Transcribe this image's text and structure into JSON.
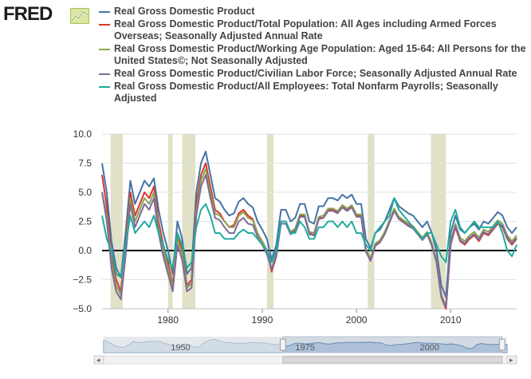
{
  "logo": {
    "text": "FRED"
  },
  "chart_data": {
    "type": "line",
    "xlim": [
      1973.0,
      2017.0
    ],
    "ylim": [
      -5.0,
      10.0
    ],
    "x_ticks": [
      1980,
      1990,
      2000,
      2010
    ],
    "y_ticks": [
      10.0,
      7.5,
      5.0,
      2.5,
      0.0,
      -2.5,
      -5.0
    ],
    "x_tick_labels": [
      "1980",
      "1990",
      "2000",
      "2010"
    ],
    "y_tick_labels": [
      "10.0",
      "7.5",
      "5.0",
      "2.5",
      "0.0",
      "−2.5",
      "−5.0"
    ],
    "legend_position": "top",
    "grid": {
      "horizontal": true,
      "vertical": false
    },
    "recessions": [
      [
        1973.9,
        1975.2
      ],
      [
        1980.0,
        1980.5
      ],
      [
        1981.5,
        1982.9
      ],
      [
        1990.5,
        1991.2
      ],
      [
        2001.2,
        2001.9
      ],
      [
        2007.9,
        2009.5
      ]
    ],
    "x": [
      1973.0,
      1973.5,
      1974.0,
      1974.5,
      1975.0,
      1975.5,
      1976.0,
      1976.5,
      1977.0,
      1977.5,
      1978.0,
      1978.5,
      1979.0,
      1979.5,
      1980.0,
      1980.5,
      1981.0,
      1981.5,
      1982.0,
      1982.5,
      1983.0,
      1983.5,
      1984.0,
      1984.5,
      1985.0,
      1985.5,
      1986.0,
      1986.5,
      1987.0,
      1987.5,
      1988.0,
      1988.5,
      1989.0,
      1989.5,
      1990.0,
      1990.5,
      1991.0,
      1991.5,
      1992.0,
      1992.5,
      1993.0,
      1993.5,
      1994.0,
      1994.5,
      1995.0,
      1995.5,
      1996.0,
      1996.5,
      1997.0,
      1997.5,
      1998.0,
      1998.5,
      1999.0,
      1999.5,
      2000.0,
      2000.5,
      2001.0,
      2001.5,
      2002.0,
      2002.5,
      2003.0,
      2003.5,
      2004.0,
      2004.5,
      2005.0,
      2005.5,
      2006.0,
      2006.5,
      2007.0,
      2007.5,
      2008.0,
      2008.5,
      2009.0,
      2009.5,
      2010.0,
      2010.5,
      2011.0,
      2011.5,
      2012.0,
      2012.5,
      2013.0,
      2013.5,
      2014.0,
      2014.5,
      2015.0,
      2015.5,
      2016.0,
      2016.5,
      2017.0
    ],
    "series": [
      {
        "name": "Real Gross Domestic Product",
        "color": "#4572a7",
        "values": [
          7.5,
          5.0,
          0.8,
          -1.5,
          -2.3,
          1.5,
          6.0,
          4.0,
          5.0,
          6.0,
          5.5,
          6.2,
          3.5,
          1.5,
          0.0,
          -2.0,
          2.5,
          1.0,
          -2.0,
          -1.5,
          5.0,
          7.5,
          8.5,
          6.5,
          4.5,
          4.2,
          3.5,
          3.0,
          3.2,
          4.2,
          4.5,
          4.0,
          3.7,
          2.5,
          1.8,
          1.0,
          -0.8,
          0.5,
          3.5,
          3.5,
          2.5,
          2.8,
          4.0,
          4.0,
          2.5,
          2.3,
          3.8,
          3.8,
          4.5,
          4.5,
          4.3,
          4.8,
          4.5,
          4.8,
          4.0,
          4.0,
          1.0,
          0.2,
          1.5,
          1.8,
          2.5,
          3.5,
          4.5,
          3.8,
          3.5,
          3.2,
          3.0,
          2.5,
          2.0,
          2.5,
          1.5,
          0.0,
          -3.0,
          -4.0,
          1.5,
          3.0,
          1.8,
          1.5,
          2.0,
          2.3,
          1.8,
          2.5,
          2.3,
          2.8,
          3.3,
          3.0,
          2.0,
          1.5,
          2.0
        ]
      },
      {
        "name": "Real Gross Domestic Product/Total Population: All Ages including Armed Forces Overseas; Seasonally Adjusted Annual Rate",
        "color": "#d9352b",
        "values": [
          6.5,
          3.8,
          -0.5,
          -2.5,
          -3.5,
          0.5,
          5.0,
          3.0,
          4.0,
          5.0,
          4.5,
          5.5,
          2.5,
          0.5,
          -1.0,
          -3.0,
          1.5,
          0.0,
          -3.0,
          -2.5,
          4.0,
          6.5,
          7.5,
          5.5,
          3.5,
          3.2,
          2.5,
          2.0,
          2.2,
          3.2,
          3.5,
          3.0,
          2.7,
          1.5,
          0.8,
          0.0,
          -1.8,
          -0.5,
          2.5,
          2.5,
          1.5,
          1.8,
          3.0,
          3.0,
          1.5,
          1.3,
          2.8,
          2.8,
          3.5,
          3.5,
          3.3,
          3.8,
          3.5,
          3.8,
          3.0,
          3.0,
          0.0,
          -0.8,
          0.5,
          0.8,
          1.5,
          2.5,
          3.5,
          2.8,
          2.5,
          2.2,
          2.0,
          1.5,
          1.0,
          1.5,
          0.5,
          -1.0,
          -4.0,
          -5.0,
          0.5,
          2.0,
          0.8,
          0.5,
          1.0,
          1.3,
          0.8,
          1.5,
          1.3,
          1.8,
          2.3,
          2.0,
          1.0,
          0.5,
          1.0
        ]
      },
      {
        "name": "Real Gross Domestic Product/Working Age Population: Aged 15-64: All Persons for the United States©; Not Seasonally Adjusted",
        "color": "#89a54e",
        "values": [
          5.0,
          3.0,
          -1.0,
          -3.0,
          -3.8,
          0.0,
          4.5,
          2.5,
          3.5,
          4.5,
          4.0,
          5.0,
          2.0,
          0.0,
          -1.5,
          -3.2,
          1.0,
          -0.3,
          -3.2,
          -2.8,
          3.5,
          6.0,
          7.0,
          5.0,
          3.2,
          3.0,
          2.5,
          2.0,
          2.0,
          3.0,
          3.3,
          2.8,
          2.6,
          1.5,
          0.8,
          0.0,
          -1.6,
          -0.3,
          2.5,
          2.5,
          1.6,
          1.9,
          3.1,
          3.1,
          1.6,
          1.5,
          2.9,
          3.0,
          3.6,
          3.6,
          3.4,
          3.9,
          3.6,
          3.9,
          3.1,
          3.1,
          0.1,
          -0.7,
          0.6,
          0.9,
          1.6,
          2.6,
          3.6,
          2.9,
          2.6,
          2.3,
          2.1,
          1.6,
          1.1,
          1.6,
          0.6,
          -0.8,
          -3.8,
          -4.8,
          0.8,
          2.3,
          1.1,
          0.8,
          1.3,
          1.6,
          1.1,
          1.8,
          1.6,
          2.1,
          2.6,
          2.3,
          1.3,
          0.8,
          1.3
        ]
      },
      {
        "name": "Real Gross Domestic Product/Civilian Labor Force; Seasonally Adjusted Annual Rate",
        "color": "#80699b",
        "values": [
          5.0,
          2.5,
          -1.5,
          -3.5,
          -4.2,
          -0.5,
          4.0,
          2.0,
          3.0,
          4.0,
          3.5,
          4.5,
          1.5,
          -0.5,
          -2.0,
          -3.5,
          0.5,
          -0.8,
          -3.5,
          -3.2,
          3.0,
          5.5,
          6.5,
          4.5,
          2.8,
          2.6,
          2.0,
          1.5,
          1.5,
          2.5,
          2.8,
          2.3,
          2.2,
          1.2,
          0.5,
          -0.3,
          -1.6,
          -0.4,
          2.3,
          2.3,
          1.4,
          1.7,
          2.9,
          2.9,
          1.4,
          1.3,
          2.7,
          2.8,
          3.4,
          3.4,
          3.2,
          3.7,
          3.4,
          3.7,
          2.9,
          2.9,
          -0.1,
          -0.9,
          0.4,
          0.7,
          1.4,
          2.4,
          3.4,
          2.7,
          2.4,
          2.1,
          1.9,
          1.4,
          0.9,
          1.4,
          0.4,
          -1.0,
          -4.0,
          -4.9,
          0.6,
          2.1,
          0.9,
          0.6,
          1.1,
          1.4,
          0.9,
          1.6,
          1.4,
          1.9,
          2.4,
          2.1,
          1.1,
          0.6,
          1.1
        ]
      },
      {
        "name": "Real Gross Domestic Product/All Employees: Total Nonfarm Payrolls; Seasonally Adjusted",
        "color": "#1fab9e",
        "values": [
          3.0,
          1.0,
          0.0,
          -2.0,
          -2.3,
          0.5,
          3.0,
          1.5,
          2.0,
          2.5,
          2.0,
          3.0,
          1.5,
          0.5,
          -0.8,
          -1.5,
          1.5,
          0.5,
          -1.5,
          -1.0,
          2.0,
          3.5,
          4.0,
          3.0,
          1.5,
          1.5,
          1.0,
          1.0,
          1.0,
          1.5,
          1.8,
          1.5,
          1.5,
          1.0,
          0.5,
          0.0,
          -1.0,
          0.0,
          2.5,
          2.5,
          1.5,
          1.5,
          2.5,
          2.0,
          1.0,
          1.0,
          2.0,
          2.0,
          2.5,
          2.5,
          2.0,
          2.5,
          2.0,
          2.5,
          1.5,
          1.5,
          0.5,
          0.0,
          1.5,
          2.0,
          2.5,
          3.0,
          4.5,
          3.5,
          3.0,
          2.5,
          2.0,
          1.5,
          1.0,
          1.5,
          1.5,
          0.5,
          -0.5,
          -1.0,
          2.5,
          3.5,
          2.0,
          1.5,
          2.0,
          2.5,
          2.0,
          2.0,
          2.0,
          2.0,
          2.5,
          1.5,
          0.0,
          -0.5,
          0.5
        ]
      }
    ]
  },
  "navigator": {
    "x_tick_labels": [
      "1950",
      "1975",
      "2000"
    ],
    "x_ticks": [
      1950,
      1975,
      2000
    ],
    "xlim": [
      1937.0,
      2018.0
    ],
    "window": [
      1973.0,
      2017.0
    ],
    "left_arrow": "◂",
    "right_arrow": "▸"
  }
}
